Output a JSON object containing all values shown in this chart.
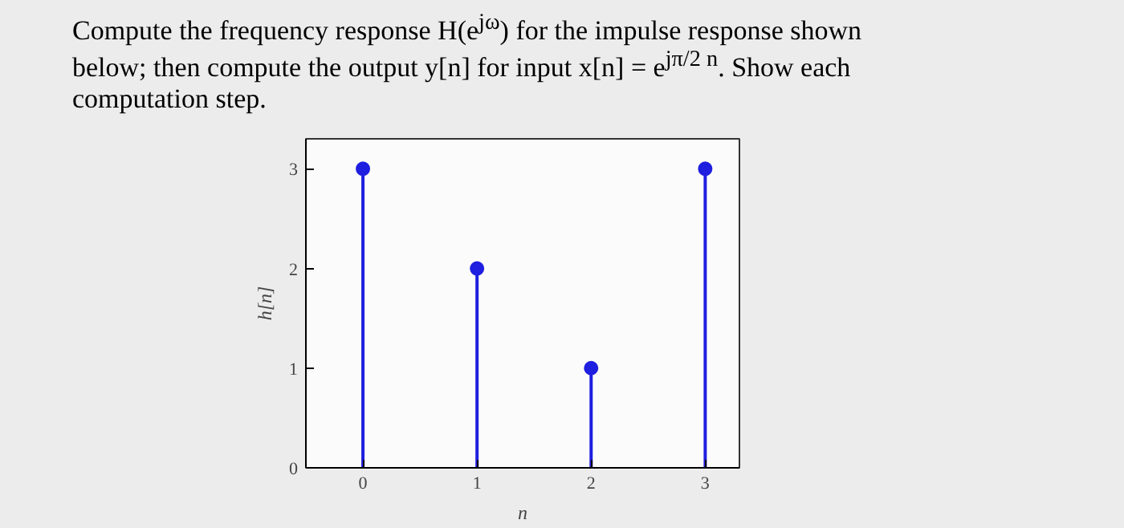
{
  "chart_data": {
    "type": "lollipop",
    "title": "Compute the frequency response H(e$^{jω}$) for the impulse response shown below; then compute the output y[n] for input x[n] = e$^{jπ/2 n}$. Show each computation step.",
    "x": [
      0,
      1,
      2,
      3
    ],
    "values": [
      3,
      2,
      1,
      3
    ],
    "color": "#1f1fe0",
    "xlabel": "n",
    "ylabel": "h[n]",
    "xlim": [
      -0.5,
      3.3
    ],
    "ylim": [
      0,
      3.3
    ],
    "xticks": [
      0,
      1,
      2,
      3
    ],
    "yticks": [
      0,
      1,
      2,
      3
    ],
    "marker": "circle"
  }
}
